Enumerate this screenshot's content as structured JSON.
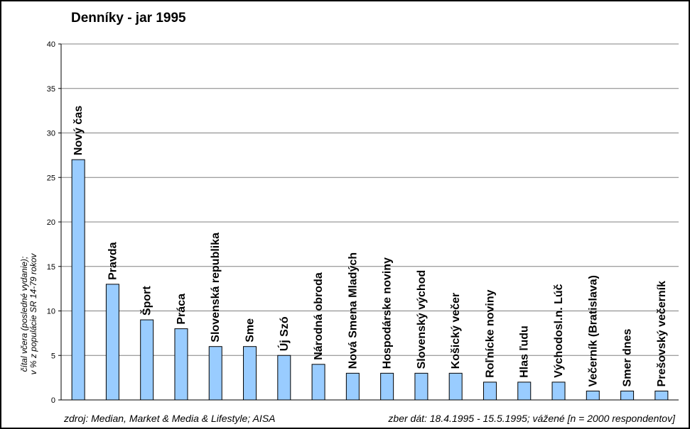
{
  "chart_data": {
    "type": "bar",
    "title": "Denníky - jar 1995",
    "ylabel_lines": [
      "čítal včera (posledné vydanie);",
      "v % z populácie SR 14-79 rokov"
    ],
    "xlabel": "",
    "ylim": [
      0,
      40
    ],
    "yticks": [
      "0",
      "5",
      "10",
      "15",
      "20",
      "25",
      "30",
      "35",
      "40"
    ],
    "grid": true,
    "legend": "none",
    "bar_color": "#99ccff",
    "categories": [
      "Nový čas",
      "Pravda",
      "Šport",
      "Práca",
      "Slovenská republika",
      "Sme",
      "Új Szó",
      "Národná obroda",
      "Nová Smena Mladých",
      "Hospodárske noviny",
      "Slovenský východ",
      "Košický večer",
      "Roľnícke noviny",
      "Hlas ľudu",
      "Východosl.n. Lúč",
      "Večerník (Bratislava)",
      "Smer dnes",
      "Prešovský večerník"
    ],
    "values": [
      27,
      13,
      9,
      8,
      6,
      6,
      5,
      4,
      3,
      3,
      3,
      3,
      2,
      2,
      2,
      1,
      1,
      1
    ]
  },
  "footer": {
    "source": "zdroj: Median, Market & Media & Lifestyle; AISA",
    "collection": "zber dát: 18.4.1995 - 15.5.1995; vážené [n = 2000 respondentov]"
  }
}
